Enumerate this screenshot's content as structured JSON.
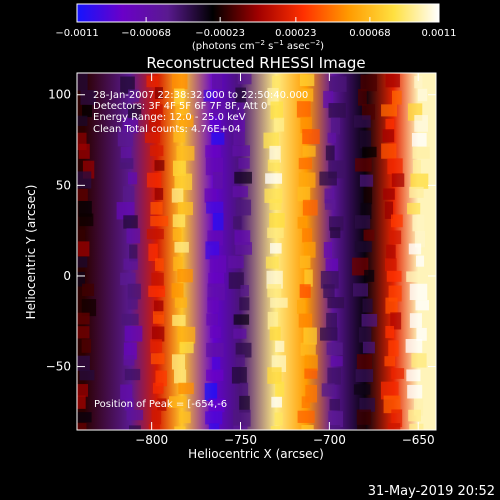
{
  "chart_data": {
    "type": "heatmap",
    "title": "Reconstructed RHESSI Image",
    "xlabel": "Heliocentric X (arcsec)",
    "ylabel": "Heliocentric Y (arcsec)",
    "xlim": [
      -842,
      -640
    ],
    "ylim": [
      -85,
      112
    ],
    "x_ticks": [
      -800,
      -750,
      -700,
      -650
    ],
    "x_tick_labels": [
      "−800",
      "−750",
      "−700",
      "−650"
    ],
    "y_ticks": [
      100,
      50,
      0,
      -50
    ],
    "y_tick_labels": [
      "100",
      "50",
      "0",
      "−50"
    ],
    "colorbar": {
      "range": [
        -0.0011,
        0.0011
      ],
      "colormap": [
        "#1414ff",
        "#6a00c8",
        "#5a1a90",
        "#000000",
        "#a00000",
        "#ff3000",
        "#ff9a00",
        "#ffe040",
        "#ffffff"
      ],
      "ticks": [
        -0.0011,
        -0.00068,
        -0.00023,
        0.00023,
        0.00068,
        0.0011
      ],
      "tick_labels": [
        "−0.0011",
        "−0.00068",
        "−0.00023",
        "0.00023",
        "0.00068",
        "0.0011"
      ],
      "unit_parts": [
        "(photons cm",
        "−2",
        " s",
        "−1",
        " asec",
        "−2",
        ")"
      ]
    },
    "bands": [
      {
        "x": -838,
        "value": -0.0002
      },
      {
        "x": -812,
        "value": -0.00055
      },
      {
        "x": -797,
        "value": 0.00015
      },
      {
        "x": -783,
        "value": 0.00072
      },
      {
        "x": -765,
        "value": -0.00085
      },
      {
        "x": -750,
        "value": -0.0005
      },
      {
        "x": -730,
        "value": 0.00092
      },
      {
        "x": -713,
        "value": 0.00055
      },
      {
        "x": -698,
        "value": -0.0006
      },
      {
        "x": -680,
        "value": -0.0003
      },
      {
        "x": -664,
        "value": 0.0002
      },
      {
        "x": -650,
        "value": 0.001
      }
    ],
    "annotations": [
      "28-Jan-2007 22:38:32.000 to 22:50:40.000",
      "Detectors: 3F 4F 5F 6F 7F 8F, Att 0",
      "Energy Range: 12.0 - 25.0 keV",
      "Clean     Total counts: 4.76E+04"
    ],
    "peak_label": "Position of Peak = [-654,-6",
    "timestamp": "31-May-2019 20:52"
  }
}
